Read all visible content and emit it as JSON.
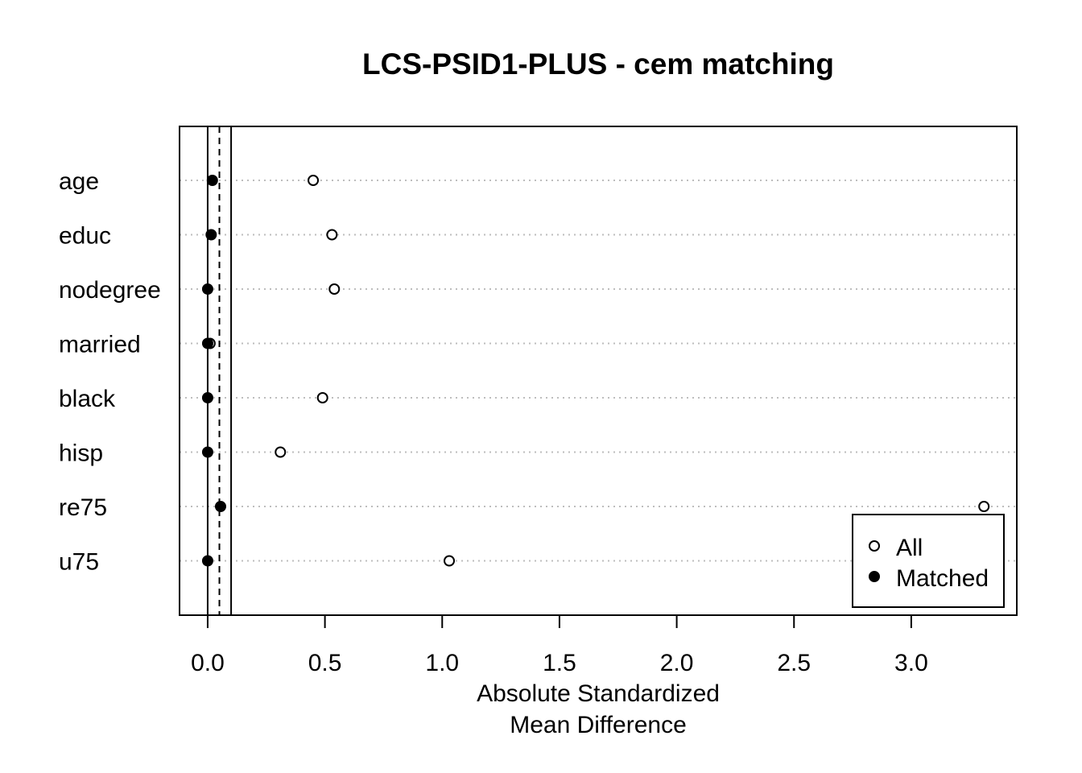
{
  "chart_data": {
    "type": "scatter",
    "title": "LCS-PSID1-PLUS - cem matching",
    "xlabel_lines": [
      "Absolute Standardized",
      "Mean Difference"
    ],
    "categories": [
      "age",
      "educ",
      "nodegree",
      "married",
      "black",
      "hisp",
      "re75",
      "u75"
    ],
    "series": [
      {
        "name": "All",
        "marker": "open-circle",
        "values": [
          0.45,
          0.53,
          0.54,
          0.01,
          0.49,
          0.31,
          3.31,
          1.03
        ]
      },
      {
        "name": "Matched",
        "marker": "filled-circle",
        "values": [
          0.02,
          0.015,
          0.0,
          0.0,
          0.0,
          0.0,
          0.055,
          0.0
        ]
      }
    ],
    "xlim": [
      -0.12,
      3.45
    ],
    "xticks": [
      0.0,
      0.5,
      1.0,
      1.5,
      2.0,
      2.5,
      3.0
    ],
    "xtick_labels": [
      "0.0",
      "0.5",
      "1.0",
      "1.5",
      "2.0",
      "2.5",
      "3.0"
    ],
    "reference_lines": [
      {
        "x": 0.0,
        "style": "solid"
      },
      {
        "x": 0.05,
        "style": "dashed"
      },
      {
        "x": 0.1,
        "style": "solid"
      }
    ],
    "grid": "horizontal dotted",
    "legend": {
      "position": "bottom-right",
      "entries": [
        "All",
        "Matched"
      ]
    }
  }
}
